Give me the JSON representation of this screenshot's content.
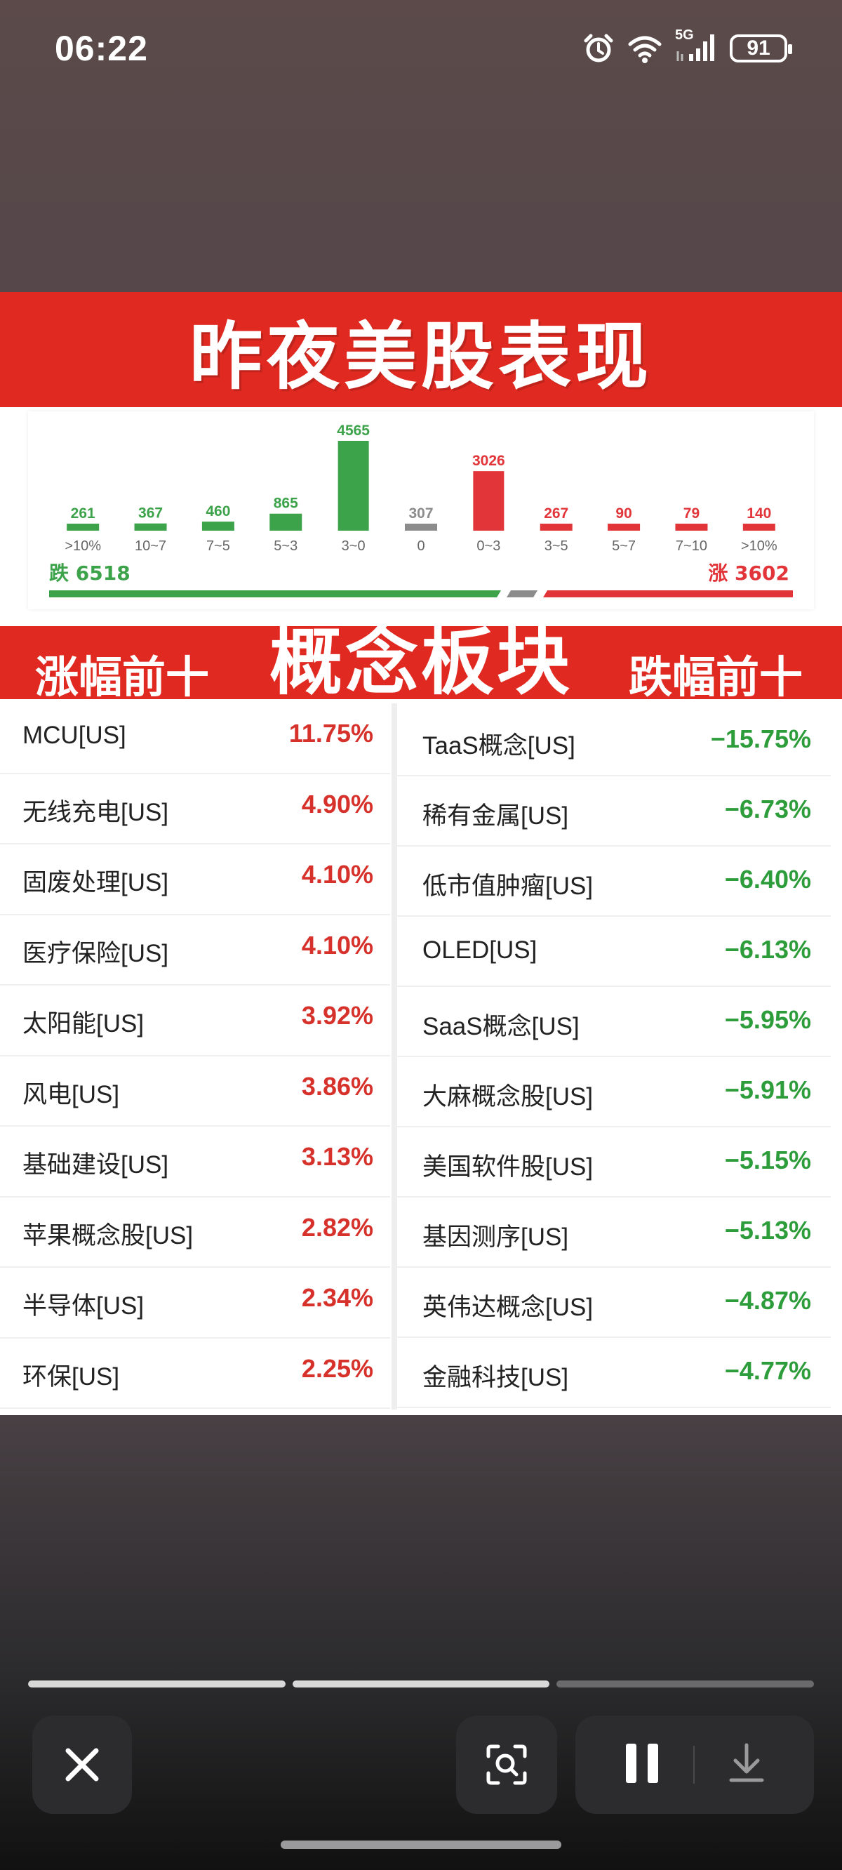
{
  "status_bar": {
    "time": "06:22",
    "network": "5G",
    "battery": "91",
    "icons": [
      "alarm-icon",
      "wifi-icon",
      "signal-icon",
      "battery-icon"
    ]
  },
  "article": {
    "banner_title": "昨夜美股表现",
    "chart_data": {
      "type": "bar",
      "categories": [
        ">10%",
        "10~7",
        "7~5",
        "5~3",
        "3~0",
        "0",
        "0~3",
        "3~5",
        "5~7",
        "7~10",
        ">10%"
      ],
      "values": [
        261,
        367,
        460,
        865,
        4565,
        307,
        3026,
        267,
        90,
        79,
        140
      ],
      "colors": [
        "#3da34a",
        "#3da34a",
        "#3da34a",
        "#3da34a",
        "#3da34a",
        "#8c8c8c",
        "#e2353a",
        "#e2353a",
        "#e2353a",
        "#e2353a",
        "#e2353a"
      ],
      "ylim": [
        0,
        4565
      ],
      "down_label": "跌",
      "down_total": "6518",
      "up_label": "涨",
      "up_total": "3602"
    },
    "section_left": "涨幅前十",
    "section_center": "概念板块",
    "section_right": "跌幅前十",
    "gainers": [
      {
        "name": "MCU[US]",
        "value": "11.75%"
      },
      {
        "name": "无线充电[US]",
        "value": "4.90%"
      },
      {
        "name": "固废处理[US]",
        "value": "4.10%"
      },
      {
        "name": "医疗保险[US]",
        "value": "4.10%"
      },
      {
        "name": "太阳能[US]",
        "value": "3.92%"
      },
      {
        "name": "风电[US]",
        "value": "3.86%"
      },
      {
        "name": "基础建设[US]",
        "value": "3.13%"
      },
      {
        "name": "苹果概念股[US]",
        "value": "2.82%"
      },
      {
        "name": "半导体[US]",
        "value": "2.34%"
      },
      {
        "name": "环保[US]",
        "value": "2.25%"
      }
    ],
    "losers": [
      {
        "name": "TaaS概念[US]",
        "value": "−15.75%"
      },
      {
        "name": "稀有金属[US]",
        "value": "−6.73%"
      },
      {
        "name": "低市值肿瘤[US]",
        "value": "−6.40%"
      },
      {
        "name": "OLED[US]",
        "value": "−6.13%"
      },
      {
        "name": "SaaS概念[US]",
        "value": "−5.95%"
      },
      {
        "name": "大麻概念股[US]",
        "value": "−5.91%"
      },
      {
        "name": "美国软件股[US]",
        "value": "−5.15%"
      },
      {
        "name": "基因测序[US]",
        "value": "−5.13%"
      },
      {
        "name": "英伟达概念[US]",
        "value": "−4.87%"
      },
      {
        "name": "金融科技[US]",
        "value": "−4.77%"
      }
    ]
  },
  "viewer": {
    "progress": [
      1,
      1,
      0
    ],
    "buttons": [
      "close-icon",
      "lens-search-icon",
      "pause-icon",
      "download-icon"
    ]
  }
}
